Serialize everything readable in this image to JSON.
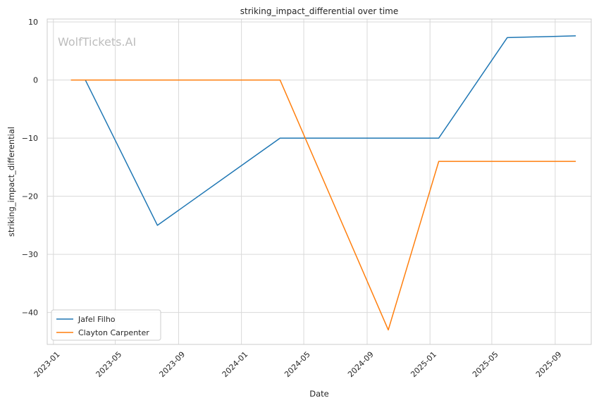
{
  "chart_data": {
    "type": "line",
    "title": "striking_impact_differential over time",
    "xlabel": "Date",
    "ylabel": "striking_impact_differential",
    "watermark": "WolfTickets.AI",
    "x_ticks": [
      "2023-01",
      "2023-05",
      "2023-09",
      "2024-01",
      "2024-05",
      "2024-09",
      "2025-01",
      "2025-05",
      "2025-09"
    ],
    "y_ticks": [
      10,
      0,
      -10,
      -20,
      -30,
      -40
    ],
    "y_tick_labels": [
      "10",
      "0",
      "−10",
      "−20",
      "−30",
      "−40"
    ],
    "xlim": [
      "2022-12-20",
      "2025-11-10"
    ],
    "ylim": [
      -45.5,
      10.5
    ],
    "grid": true,
    "legend_position": "lower-left",
    "series": [
      {
        "name": "Jafel Filho",
        "color": "#1f77b4",
        "points": [
          {
            "x": "2023-03-04",
            "y": 0
          },
          {
            "x": "2023-07-22",
            "y": -25
          },
          {
            "x": "2024-03-16",
            "y": -10
          },
          {
            "x": "2025-01-18",
            "y": -10
          },
          {
            "x": "2025-05-31",
            "y": 7.3
          },
          {
            "x": "2025-10-11",
            "y": 7.6
          }
        ]
      },
      {
        "name": "Clayton Carpenter",
        "color": "#ff7f0e",
        "points": [
          {
            "x": "2023-02-04",
            "y": 0
          },
          {
            "x": "2024-03-16",
            "y": 0
          },
          {
            "x": "2024-10-12",
            "y": -43
          },
          {
            "x": "2025-01-18",
            "y": -14
          },
          {
            "x": "2025-10-11",
            "y": -14
          }
        ]
      }
    ]
  }
}
